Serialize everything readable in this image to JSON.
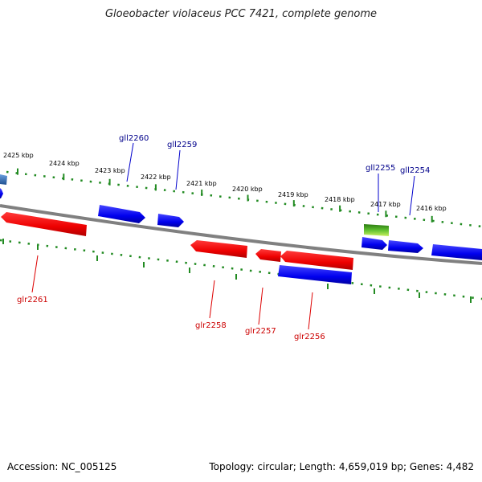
{
  "title": "Gloeobacter violaceus PCC 7421, complete genome",
  "footer": {
    "accession": "Accession: NC_005125",
    "summary": "Topology: circular; Length: 4,659,019 bp; Genes: 4,482"
  },
  "colors": {
    "forward_gene": "#0000ee",
    "reverse_gene": "#ee0000",
    "rna_gene": "#3a9a1a",
    "partial_gene": "#3070c0",
    "backbone": "#808080",
    "ticks": "#228b22",
    "forward_label": "#00008b",
    "reverse_label": "#cc0000"
  },
  "scale": {
    "unit": "kbp",
    "ticks": [
      "2425 kbp",
      "2424 kbp",
      "2423 kbp",
      "2422 kbp",
      "2421 kbp",
      "2420 kbp",
      "2419 kbp",
      "2418 kbp",
      "2417 kbp",
      "2416 kbp"
    ]
  },
  "genes": [
    {
      "name": "gll2260",
      "strand": "forward"
    },
    {
      "name": "gll2259",
      "strand": "forward"
    },
    {
      "name": "gll2255",
      "strand": "forward",
      "rna": true
    },
    {
      "name": "gll2254",
      "strand": "forward"
    },
    {
      "name": "glr2261",
      "strand": "reverse"
    },
    {
      "name": "glr2258",
      "strand": "reverse"
    },
    {
      "name": "glr2257",
      "strand": "reverse"
    },
    {
      "name": "glr2256",
      "strand": "reverse"
    }
  ]
}
